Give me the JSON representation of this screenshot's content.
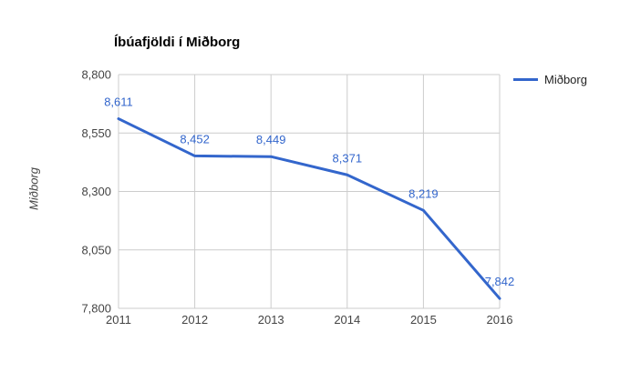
{
  "chart_data": {
    "type": "line",
    "title": "Íbúafjöldi í Miðborg",
    "xlabel": "",
    "ylabel": "Miðborg",
    "categories": [
      "2011",
      "2012",
      "2013",
      "2014",
      "2015",
      "2016"
    ],
    "series": [
      {
        "name": "Miðborg",
        "values": [
          8611,
          8452,
          8449,
          8371,
          8219,
          7842
        ],
        "color": "#3366cc"
      }
    ],
    "data_labels": [
      "8,611",
      "8,452",
      "8,449",
      "8,371",
      "8,219",
      "7,842"
    ],
    "ylim": [
      7800,
      8800
    ],
    "yticks": [
      7800,
      8050,
      8300,
      8550,
      8800
    ],
    "ytick_labels": [
      "7,800",
      "8,050",
      "8,300",
      "8,550",
      "8,800"
    ],
    "grid": true,
    "legend": {
      "position": "right",
      "entries": [
        "Miðborg"
      ]
    },
    "colors": {
      "line": "#3366cc",
      "annotation_text": "#3366cc",
      "grid": "#cccccc",
      "axis_text": "#444444",
      "title_text": "#000000",
      "legend_text": "#222222",
      "background": "#ffffff"
    }
  }
}
